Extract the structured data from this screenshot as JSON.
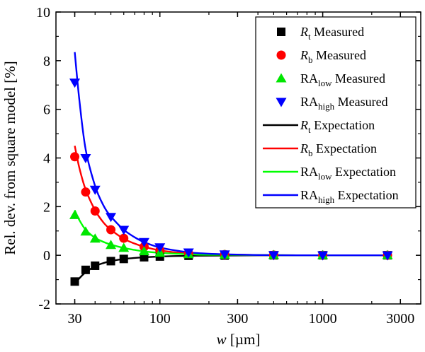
{
  "chart_data": {
    "type": "scatter",
    "xlabel": {
      "var": "w",
      "unit": " [µm]"
    },
    "ylabel": "Rel. dev. from square model [%]",
    "xscale": "log",
    "xlim": [
      23,
      4000
    ],
    "ylim": [
      -2,
      10
    ],
    "xticks": [
      30,
      100,
      300,
      1000,
      3000
    ],
    "xtick_labels": [
      "30",
      "100",
      "300",
      "1000",
      "3000"
    ],
    "yticks": [
      -2,
      0,
      2,
      4,
      6,
      8,
      10
    ],
    "ytick_labels": [
      "-2",
      "0",
      "2",
      "4",
      "6",
      "8",
      "10"
    ],
    "grid": false,
    "legend_position": "top-right",
    "measured": [
      {
        "name_main": "R",
        "name_sub": "t",
        "italic": true,
        "suffix": " Measured",
        "marker": "square",
        "color": "#000000",
        "x": [
          30,
          35,
          40,
          50,
          60,
          80,
          100,
          150,
          250,
          500,
          1000,
          2500
        ],
        "y": [
          -1.08,
          -0.6,
          -0.43,
          -0.24,
          -0.15,
          -0.08,
          -0.05,
          -0.02,
          -0.01,
          0.0,
          0.0,
          0.0
        ]
      },
      {
        "name_main": "R",
        "name_sub": "b",
        "italic": true,
        "suffix": " Measured",
        "marker": "circle",
        "color": "#ff0000",
        "x": [
          30,
          35,
          40,
          50,
          60,
          80,
          100,
          150,
          250,
          500,
          1000,
          2500
        ],
        "y": [
          4.05,
          2.6,
          1.82,
          1.05,
          0.7,
          0.35,
          0.2,
          0.08,
          0.03,
          0.01,
          0.0,
          0.0
        ]
      },
      {
        "name_main": "RA",
        "name_sub": "low",
        "italic": false,
        "suffix": " Measured",
        "marker": "triangle-up",
        "color": "#00e600",
        "x": [
          30,
          35,
          40,
          50,
          60,
          80,
          100,
          150,
          250,
          500,
          1000,
          2500
        ],
        "y": [
          1.65,
          0.97,
          0.68,
          0.42,
          0.3,
          0.16,
          0.1,
          0.04,
          0.02,
          0.01,
          0.0,
          0.0
        ]
      },
      {
        "name_main": "RA",
        "name_sub": "high",
        "italic": false,
        "suffix": " Measured",
        "marker": "triangle-down",
        "color": "#0000ff",
        "x": [
          30,
          35,
          40,
          50,
          60,
          80,
          100,
          150,
          250,
          500,
          1000,
          2500
        ],
        "y": [
          7.1,
          4.0,
          2.7,
          1.58,
          1.05,
          0.55,
          0.33,
          0.12,
          0.04,
          0.01,
          0.0,
          0.0
        ]
      }
    ],
    "expectation": [
      {
        "name_main": "R",
        "name_sub": "t",
        "italic": true,
        "suffix": " Expectation",
        "color": "#000000",
        "x": [
          30,
          32,
          35,
          40,
          45,
          50,
          60,
          70,
          80,
          100,
          130,
          170,
          250,
          400,
          700,
          1000,
          2500
        ],
        "y": [
          -1.2,
          -0.95,
          -0.7,
          -0.45,
          -0.32,
          -0.24,
          -0.15,
          -0.11,
          -0.08,
          -0.05,
          -0.03,
          -0.02,
          -0.01,
          0.0,
          0.0,
          0.0,
          0.0
        ]
      },
      {
        "name_main": "R",
        "name_sub": "b",
        "italic": true,
        "suffix": " Expectation",
        "color": "#ff0000",
        "x": [
          30,
          32,
          35,
          40,
          45,
          50,
          60,
          70,
          80,
          100,
          130,
          170,
          250,
          400,
          700,
          1000,
          2500
        ],
        "y": [
          4.5,
          3.6,
          2.7,
          1.85,
          1.35,
          1.05,
          0.68,
          0.48,
          0.35,
          0.2,
          0.11,
          0.06,
          0.03,
          0.01,
          0.0,
          0.0,
          0.0
        ]
      },
      {
        "name_main": "RA",
        "name_sub": "low",
        "italic": false,
        "suffix": " Expectation",
        "color": "#00ff00",
        "x": [
          30,
          32,
          35,
          40,
          45,
          50,
          60,
          70,
          80,
          100,
          130,
          170,
          250,
          400,
          700,
          1000,
          2500
        ],
        "y": [
          1.85,
          1.45,
          1.05,
          0.72,
          0.55,
          0.44,
          0.3,
          0.22,
          0.16,
          0.1,
          0.06,
          0.03,
          0.02,
          0.01,
          0.0,
          0.0,
          0.0
        ]
      },
      {
        "name_main": "RA",
        "name_sub": "high",
        "italic": false,
        "suffix": " Expectation",
        "color": "#0000ff",
        "x": [
          30,
          32,
          35,
          40,
          45,
          50,
          60,
          70,
          80,
          100,
          130,
          170,
          250,
          400,
          700,
          1000,
          2500
        ],
        "y": [
          8.35,
          6.4,
          4.35,
          2.85,
          2.05,
          1.6,
          1.05,
          0.74,
          0.54,
          0.32,
          0.18,
          0.09,
          0.04,
          0.01,
          0.0,
          0.0,
          0.0
        ]
      }
    ]
  }
}
